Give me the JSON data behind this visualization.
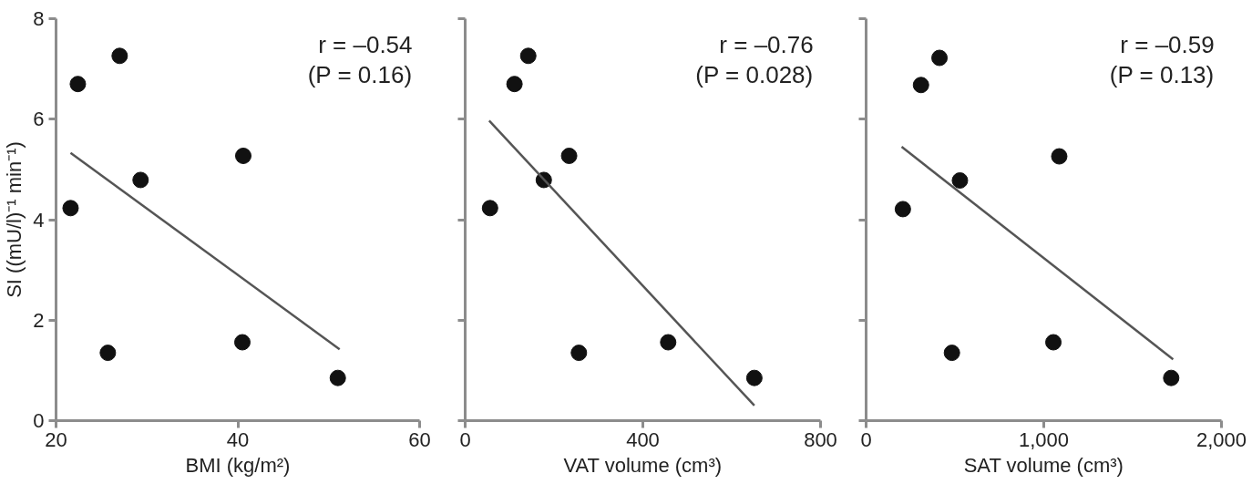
{
  "chart_data": [
    {
      "type": "scatter",
      "xlabel": "BMI (kg/m²)",
      "ylabel": "SI ((mU/l)⁻¹ min⁻¹)",
      "xlim": [
        20,
        60
      ],
      "ylim": [
        0,
        8
      ],
      "xticks": [
        20,
        40,
        60
      ],
      "yticks": [
        0,
        2,
        4,
        6,
        8
      ],
      "marker": "circle",
      "grid": false,
      "annotations": [
        "r = –0.54",
        "(P = 0.16)"
      ],
      "series": [
        {
          "color": "#111111",
          "x": [
            21.6,
            22.4,
            27.0,
            25.7,
            29.3,
            40.6,
            40.5,
            51.0
          ],
          "values": [
            4.23,
            6.7,
            7.26,
            1.35,
            4.79,
            5.27,
            1.56,
            0.85
          ]
        },
        {
          "type": "line",
          "marker": "none",
          "color": "#555555",
          "x": [
            21.6,
            51.2
          ],
          "values": [
            5.33,
            1.42
          ]
        }
      ]
    },
    {
      "type": "scatter",
      "xlabel": "VAT volume (cm³)",
      "xlim": [
        0,
        800
      ],
      "ylim": [
        0,
        8
      ],
      "xticks": [
        0,
        400,
        800
      ],
      "yticks": [
        0,
        2,
        4,
        6,
        8
      ],
      "tick_labels": "x",
      "marker": "circle",
      "grid": false,
      "annotations": [
        "r = –0.76",
        "(P = 0.028)"
      ],
      "series": [
        {
          "color": "#111111",
          "x": [
            56,
            111,
            142,
            256,
            177,
            234,
            457,
            651
          ],
          "values": [
            4.23,
            6.7,
            7.26,
            1.35,
            4.79,
            5.27,
            1.56,
            0.85
          ]
        },
        {
          "type": "line",
          "marker": "none",
          "color": "#555555",
          "x": [
            54,
            651
          ],
          "values": [
            5.97,
            0.3
          ]
        }
      ]
    },
    {
      "type": "scatter",
      "xlabel": "SAT volume (cm³)",
      "xlim": [
        0,
        2000
      ],
      "ylim": [
        0,
        8
      ],
      "xticks": [
        0,
        {
          "value": 1000,
          "label": "1,000"
        },
        {
          "value": 2000,
          "label": "2,000"
        }
      ],
      "yticks": [
        0,
        2,
        4,
        6,
        8
      ],
      "tick_labels": "x",
      "marker": "circle",
      "grid": false,
      "annotations": [
        "r = –0.59",
        "(P = 0.13)"
      ],
      "series": [
        {
          "color": "#111111",
          "x": [
            207,
            309,
            413,
            483,
            528,
            1087,
            1054,
            1717
          ],
          "values": [
            4.21,
            6.68,
            7.22,
            1.35,
            4.78,
            5.26,
            1.56,
            0.85
          ]
        },
        {
          "type": "line",
          "marker": "none",
          "color": "#555555",
          "x": [
            200,
            1728
          ],
          "values": [
            5.45,
            1.22
          ]
        }
      ]
    }
  ]
}
